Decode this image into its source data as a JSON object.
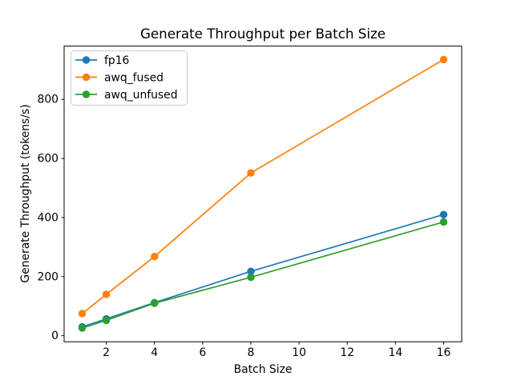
{
  "chart_data": {
    "type": "line",
    "title": "Generate Throughput per Batch Size",
    "xlabel": "Batch Size",
    "ylabel": "Generate Throughput (tokens/s)",
    "x": [
      1,
      2,
      4,
      8,
      16
    ],
    "series": [
      {
        "name": "fp16",
        "color": "#1f77b4",
        "values": [
          30,
          57,
          112,
          218,
          410
        ]
      },
      {
        "name": "awq_fused",
        "color": "#ff7f0e",
        "values": [
          75,
          140,
          268,
          551,
          935
        ]
      },
      {
        "name": "awq_unfused",
        "color": "#2ca02c",
        "values": [
          26,
          52,
          110,
          198,
          385
        ]
      }
    ],
    "xticks": [
      2,
      4,
      6,
      8,
      10,
      12,
      14,
      16
    ],
    "yticks": [
      0,
      200,
      400,
      600,
      800
    ],
    "xlim": [
      0.25,
      16.75
    ],
    "ylim": [
      -20.5,
      980.5
    ],
    "grid": false,
    "marker": "circle",
    "legend": {
      "position": "upper-left",
      "entries": [
        "fp16",
        "awq_fused",
        "awq_unfused"
      ],
      "border_color": "#cccccc",
      "background": "#ffffff"
    },
    "axis_color": "#000000"
  }
}
